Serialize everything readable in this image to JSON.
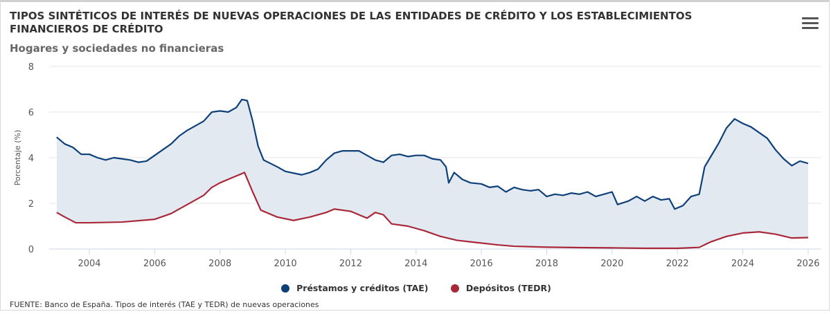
{
  "header": {
    "title": "TIPOS SINTÉTICOS DE INTERÉS DE NUEVAS OPERACIONES DE LAS ENTIDADES DE CRÉDITO Y LOS ESTABLECIMIENTOS FINANCIEROS DE CRÉDITO",
    "subtitle": "Hogares y sociedades no financieras",
    "menu_icon": "hamburger-menu-icon"
  },
  "footer": {
    "source": "FUENTE: Banco de España. Tipos de interés (TAE y TEDR) de nuevas operaciones"
  },
  "chart_data": {
    "type": "line",
    "title": "TIPOS SINTÉTICOS DE INTERÉS DE NUEVAS OPERACIONES DE LAS ENTIDADES DE CRÉDITO Y LOS ESTABLECIMIENTOS FINANCIEROS DE CRÉDITO",
    "subtitle": "Hogares y sociedades no financieras",
    "xlabel": "",
    "ylabel": "Porcentaje (%)",
    "ylim": [
      0,
      8
    ],
    "yticks": [
      "0",
      "2",
      "4",
      "6",
      "8"
    ],
    "xticks": [
      "2004",
      "2006",
      "2008",
      "2010",
      "2012",
      "2014",
      "2016",
      "2018",
      "2020",
      "2022",
      "2024",
      "2026"
    ],
    "grid": true,
    "legend": "bottom-center",
    "area_between_series": true,
    "fill_color": "#e3e9f1",
    "series": [
      {
        "name": "Préstamos y créditos (TAE)",
        "color": "#0d3f78",
        "points": [
          [
            "2003-01",
            4.9
          ],
          [
            "2003-04",
            4.6
          ],
          [
            "2003-07",
            4.45
          ],
          [
            "2003-10",
            4.15
          ],
          [
            "2004-01",
            4.15
          ],
          [
            "2004-04",
            4.0
          ],
          [
            "2004-07",
            3.9
          ],
          [
            "2004-10",
            4.0
          ],
          [
            "2005-01",
            3.95
          ],
          [
            "2005-04",
            3.9
          ],
          [
            "2005-07",
            3.8
          ],
          [
            "2005-10",
            3.85
          ],
          [
            "2006-01",
            4.1
          ],
          [
            "2006-04",
            4.35
          ],
          [
            "2006-07",
            4.6
          ],
          [
            "2006-10",
            4.95
          ],
          [
            "2007-01",
            5.2
          ],
          [
            "2007-04",
            5.4
          ],
          [
            "2007-07",
            5.6
          ],
          [
            "2007-10",
            6.0
          ],
          [
            "2008-01",
            6.05
          ],
          [
            "2008-04",
            6.0
          ],
          [
            "2008-07",
            6.2
          ],
          [
            "2008-09",
            6.55
          ],
          [
            "2008-11",
            6.5
          ],
          [
            "2009-01",
            5.6
          ],
          [
            "2009-03",
            4.5
          ],
          [
            "2009-05",
            3.9
          ],
          [
            "2009-10",
            3.6
          ],
          [
            "2010-01",
            3.4
          ],
          [
            "2010-07",
            3.25
          ],
          [
            "2010-10",
            3.35
          ],
          [
            "2011-01",
            3.5
          ],
          [
            "2011-04",
            3.9
          ],
          [
            "2011-07",
            4.2
          ],
          [
            "2011-10",
            4.3
          ],
          [
            "2012-01",
            4.3
          ],
          [
            "2012-04",
            4.3
          ],
          [
            "2012-07",
            4.1
          ],
          [
            "2012-10",
            3.9
          ],
          [
            "2013-01",
            3.8
          ],
          [
            "2013-04",
            4.1
          ],
          [
            "2013-07",
            4.15
          ],
          [
            "2013-10",
            4.05
          ],
          [
            "2014-01",
            4.1
          ],
          [
            "2014-04",
            4.1
          ],
          [
            "2014-07",
            3.95
          ],
          [
            "2014-10",
            3.9
          ],
          [
            "2014-12",
            3.6
          ],
          [
            "2015-01",
            2.9
          ],
          [
            "2015-03",
            3.35
          ],
          [
            "2015-06",
            3.05
          ],
          [
            "2015-09",
            2.9
          ],
          [
            "2016-01",
            2.85
          ],
          [
            "2016-04",
            2.7
          ],
          [
            "2016-07",
            2.75
          ],
          [
            "2016-10",
            2.5
          ],
          [
            "2017-01",
            2.7
          ],
          [
            "2017-04",
            2.6
          ],
          [
            "2017-07",
            2.55
          ],
          [
            "2017-10",
            2.6
          ],
          [
            "2018-01",
            2.3
          ],
          [
            "2018-04",
            2.4
          ],
          [
            "2018-07",
            2.35
          ],
          [
            "2018-10",
            2.45
          ],
          [
            "2019-01",
            2.4
          ],
          [
            "2019-04",
            2.5
          ],
          [
            "2019-07",
            2.3
          ],
          [
            "2019-10",
            2.4
          ],
          [
            "2020-01",
            2.5
          ],
          [
            "2020-03",
            1.95
          ],
          [
            "2020-07",
            2.1
          ],
          [
            "2020-10",
            2.3
          ],
          [
            "2021-01",
            2.1
          ],
          [
            "2021-04",
            2.3
          ],
          [
            "2021-07",
            2.15
          ],
          [
            "2021-10",
            2.2
          ],
          [
            "2021-12",
            1.75
          ],
          [
            "2022-03",
            1.9
          ],
          [
            "2022-06",
            2.3
          ],
          [
            "2022-09",
            2.4
          ],
          [
            "2022-11",
            3.6
          ],
          [
            "2023-01",
            4.0
          ],
          [
            "2023-04",
            4.6
          ],
          [
            "2023-07",
            5.3
          ],
          [
            "2023-10",
            5.7
          ],
          [
            "2024-01",
            5.5
          ],
          [
            "2024-04",
            5.35
          ],
          [
            "2024-07",
            5.1
          ],
          [
            "2024-10",
            4.85
          ],
          [
            "2025-01",
            4.35
          ],
          [
            "2025-04",
            3.95
          ],
          [
            "2025-07",
            3.65
          ],
          [
            "2025-10",
            3.85
          ],
          [
            "2026-01",
            3.75
          ]
        ]
      },
      {
        "name": "Depósitos (TEDR)",
        "color": "#a8283a",
        "points": [
          [
            "2003-01",
            1.6
          ],
          [
            "2003-04",
            1.4
          ],
          [
            "2003-08",
            1.15
          ],
          [
            "2004-01",
            1.15
          ],
          [
            "2005-01",
            1.18
          ],
          [
            "2006-01",
            1.3
          ],
          [
            "2006-07",
            1.55
          ],
          [
            "2007-01",
            1.95
          ],
          [
            "2007-07",
            2.35
          ],
          [
            "2007-10",
            2.7
          ],
          [
            "2008-01",
            2.9
          ],
          [
            "2008-07",
            3.2
          ],
          [
            "2008-10",
            3.35
          ],
          [
            "2009-01",
            2.5
          ],
          [
            "2009-04",
            1.7
          ],
          [
            "2009-10",
            1.4
          ],
          [
            "2010-04",
            1.25
          ],
          [
            "2010-10",
            1.4
          ],
          [
            "2011-04",
            1.6
          ],
          [
            "2011-07",
            1.75
          ],
          [
            "2012-01",
            1.65
          ],
          [
            "2012-07",
            1.35
          ],
          [
            "2012-10",
            1.6
          ],
          [
            "2013-01",
            1.5
          ],
          [
            "2013-04",
            1.1
          ],
          [
            "2013-10",
            1.0
          ],
          [
            "2014-04",
            0.8
          ],
          [
            "2014-10",
            0.55
          ],
          [
            "2015-04",
            0.38
          ],
          [
            "2015-10",
            0.3
          ],
          [
            "2016-07",
            0.18
          ],
          [
            "2017-01",
            0.12
          ],
          [
            "2018-01",
            0.08
          ],
          [
            "2019-01",
            0.06
          ],
          [
            "2020-01",
            0.05
          ],
          [
            "2021-01",
            0.03
          ],
          [
            "2022-01",
            0.03
          ],
          [
            "2022-09",
            0.07
          ],
          [
            "2023-01",
            0.3
          ],
          [
            "2023-07",
            0.55
          ],
          [
            "2024-01",
            0.7
          ],
          [
            "2024-07",
            0.75
          ],
          [
            "2025-01",
            0.65
          ],
          [
            "2025-07",
            0.48
          ],
          [
            "2026-01",
            0.5
          ]
        ]
      }
    ]
  }
}
